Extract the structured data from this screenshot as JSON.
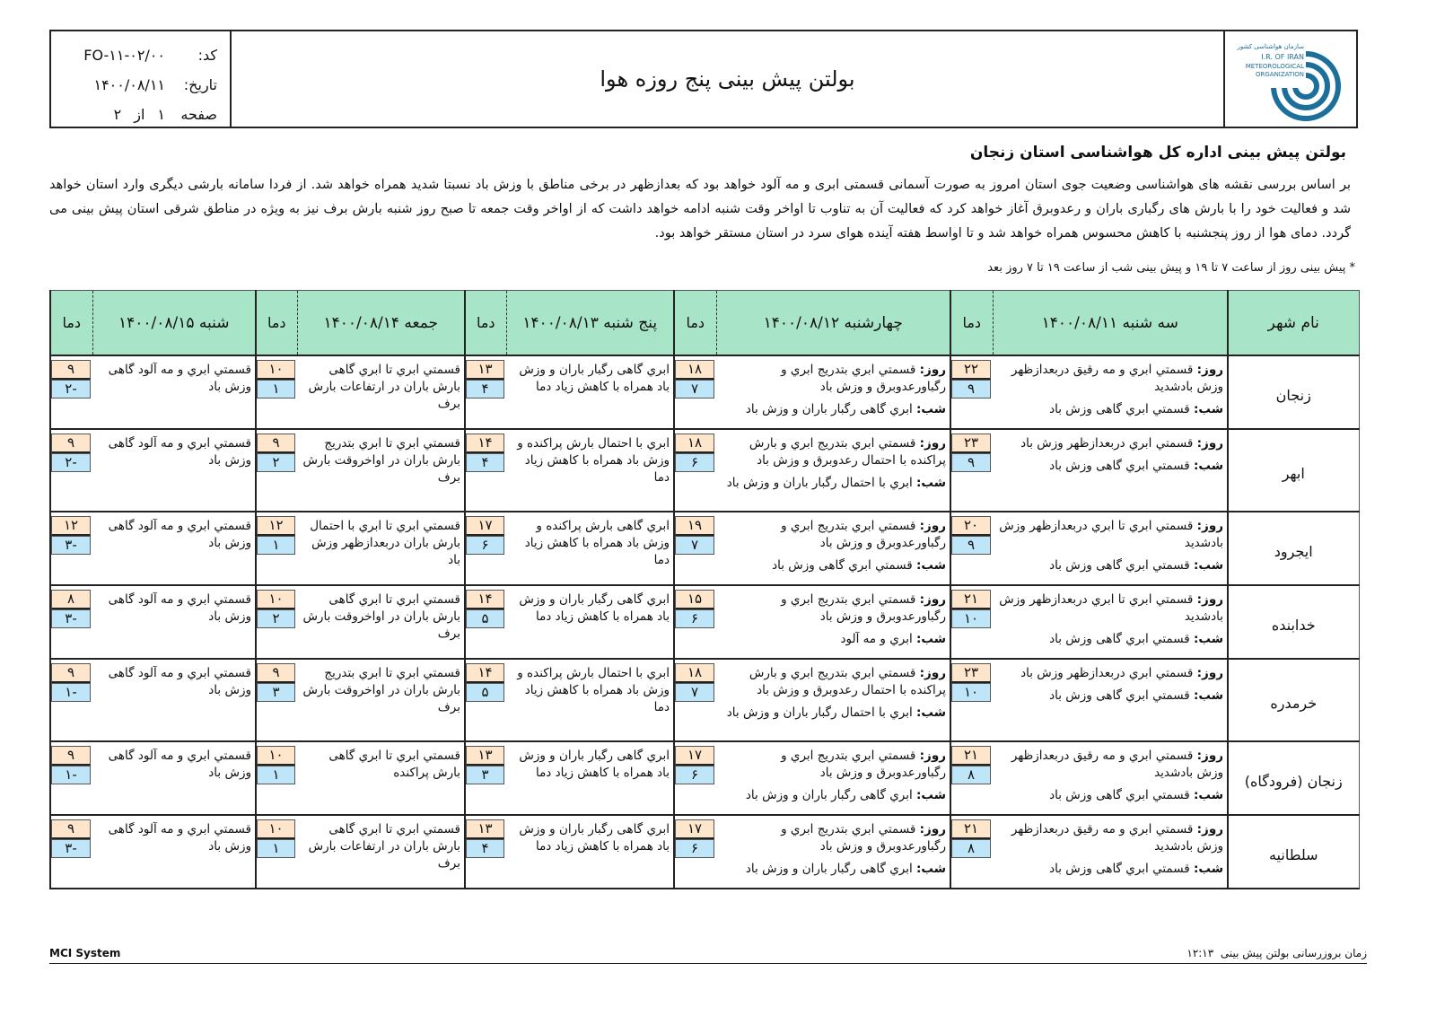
{
  "header": {
    "title": "بولتن پیش بینی پنج روزه هوا",
    "code_label": "کد:",
    "code": "FO-۱۱-۰۲/۰۰",
    "date_label": "تاریخ:",
    "date": "۱۴۰۰/۰۸/۱۱",
    "page_label": "صفحه",
    "page": "۱",
    "of_label": "از",
    "pages": "۲",
    "logo_text": "سازمان هواشناسی کشور I.R. OF IRAN METEOROLOGICAL ORGANIZATION"
  },
  "subtitle": "بولتن پیش بینی اداره کل هواشناسی استان زنجان",
  "paragraph": "بر اساس بررسی نقشه های هواشناسی وضعیت جوی استان امروز به صورت آسمانی قسمتی ابری و مه آلود خواهد بود که بعدازظهر در برخی مناطق با وزش باد نسبتا شدید همراه خواهد شد. از فردا سامانه بارشی دیگری وارد استان خواهد شد و فعالیت خود را با بارش های رگباری باران و رعدوبرق آغاز خواهد کرد که فعالیت آن به تناوب تا اواخر وقت شنبه ادامه خواهد داشت که از اواخر وقت جمعه تا صبح روز شنبه بارش برف نیز به ویژه در مناطق شرقی استان پیش بینی می گردد. دمای هوا از روز پنجشنبه با کاهش محسوس همراه خواهد شد و تا اواسط هفته آینده هوای سرد در استان مستقر خواهد بود.",
  "note": "*  پیش بینی روز از ساعت ۷ تا ۱۹ و پیش بینی شب از ساعت ۱۹ تا ۷ روز بعد",
  "table": {
    "city_header": "نام شهر",
    "temp_header": "دما",
    "day_label": "روز:",
    "night_label": "شب:",
    "days": [
      "سه شنبه ۱۴۰۰/۰۸/۱۱",
      "چهارشنبه ۱۴۰۰/۰۸/۱۲",
      "پنج شنبه ۱۴۰۰/۰۸/۱۳",
      "جمعه ۱۴۰۰/۰۸/۱۴",
      "شنبه ۱۴۰۰/۰۸/۱۵"
    ],
    "rows": [
      {
        "city": "زنجان",
        "f": [
          {
            "day": "قسمتي ابري و مه رقيق دربعدازظهر وزش بادشديد",
            "night": "قسمتي ابري گاهی وزش باد",
            "max": "۲۲",
            "min": "۹"
          },
          {
            "day": "قسمتي ابري بتدريج ابري و رگباورعدوبرق و وزش باد",
            "night": "ابري گاهی رگبار باران و وزش باد",
            "max": "۱۸",
            "min": "۷"
          },
          {
            "text": "ابري گاهی رگبار باران و وزش باد همراه با كاهش زياد دما",
            "max": "۱۳",
            "min": "۴"
          },
          {
            "text": "قسمتي ابري تا ابري گاهی بارش باران در ارتفاعات بارش برف",
            "max": "۱۰",
            "min": "۱"
          },
          {
            "text": "قسمتي ابري و مه آلود گاهی وزش باد",
            "max": "۹",
            "min": "-۲"
          }
        ]
      },
      {
        "city": "ابهر",
        "f": [
          {
            "day": "قسمتي ابري دربعدازظهر وزش باد",
            "night": "قسمتي ابري گاهی وزش باد",
            "max": "۲۳",
            "min": "۹"
          },
          {
            "day": "قسمتي ابري بتدريج ابري و بارش پراكنده با احتمال رعدوبرق و وزش باد",
            "night": "ابري با احتمال رگبار باران و وزش باد",
            "max": "۱۸",
            "min": "۶"
          },
          {
            "text": "ابري با احتمال بارش پراكنده و وزش باد همراه با كاهش زياد دما",
            "max": "۱۴",
            "min": "۴"
          },
          {
            "text": "قسمتي ابري تا ابري بتدريج بارش باران در اواخروقت بارش برف",
            "max": "۹",
            "min": "۲"
          },
          {
            "text": "قسمتي ابري و مه آلود گاهی وزش باد",
            "max": "۹",
            "min": "-۲"
          }
        ]
      },
      {
        "city": "ایجرود",
        "f": [
          {
            "day": "قسمتي ابري تا ابري دربعدازظهر وزش بادشديد",
            "night": "قسمتي ابري گاهی وزش باد",
            "max": "۲۰",
            "min": "۹"
          },
          {
            "day": "قسمتي ابري بتدريج ابري و رگباورعدوبرق و وزش باد",
            "night": "قسمتي ابري گاهی وزش باد",
            "max": "۱۹",
            "min": "۷"
          },
          {
            "text": "ابري گاهی بارش پراكنده و وزش باد همراه با كاهش زياد دما",
            "max": "۱۷",
            "min": "۶"
          },
          {
            "text": "قسمتي ابري تا ابري با احتمال بارش باران دربعدازظهر وزش باد",
            "max": "۱۲",
            "min": "۱"
          },
          {
            "text": "قسمتي ابري و مه آلود گاهی وزش باد",
            "max": "۱۲",
            "min": "-۳"
          }
        ]
      },
      {
        "city": "خدابنده",
        "f": [
          {
            "day": "قسمتي ابري تا ابري دربعدازظهر وزش بادشديد",
            "night": "قسمتي ابري گاهی وزش باد",
            "max": "۲۱",
            "min": "۱۰"
          },
          {
            "day": "قسمتي ابري بتدريج ابري و رگباورعدوبرق و وزش باد",
            "night": "ابري و مه آلود",
            "max": "۱۵",
            "min": "۶"
          },
          {
            "text": "ابري گاهی رگبار باران و وزش باد همراه با كاهش زياد دما",
            "max": "۱۴",
            "min": "۵"
          },
          {
            "text": "قسمتي ابري تا ابري گاهی بارش باران در اواخروقت بارش برف",
            "max": "۱۰",
            "min": "۲"
          },
          {
            "text": "قسمتي ابري و مه آلود گاهی وزش باد",
            "max": "۸",
            "min": "-۳"
          }
        ]
      },
      {
        "city": "خرمدره",
        "f": [
          {
            "day": "قسمتي ابري دربعدازظهر وزش باد",
            "night": "قسمتي ابري گاهی وزش باد",
            "max": "۲۳",
            "min": "۱۰"
          },
          {
            "day": "قسمتي ابري بتدريج ابري و بارش پراكنده با احتمال رعدوبرق و وزش باد",
            "night": "ابري با احتمال رگبار باران و وزش باد",
            "max": "۱۸",
            "min": "۷"
          },
          {
            "text": "ابري با احتمال بارش پراكنده و وزش باد همراه با كاهش زياد دما",
            "max": "۱۴",
            "min": "۵"
          },
          {
            "text": "قسمتي ابري تا ابري بتدريج بارش باران در اواخروقت بارش برف",
            "max": "۹",
            "min": "۳"
          },
          {
            "text": "قسمتي ابري و مه آلود گاهی وزش باد",
            "max": "۹",
            "min": "-۱"
          }
        ]
      },
      {
        "city": "زنجان (فرودگاه)",
        "f": [
          {
            "day": "قسمتي ابري و مه رقيق دربعدازظهر وزش بادشديد",
            "night": "قسمتي ابري گاهی وزش باد",
            "max": "۲۱",
            "min": "۸"
          },
          {
            "day": "قسمتي ابري بتدريج ابري و رگباورعدوبرق و وزش باد",
            "night": "ابري گاهی رگبار باران و وزش باد",
            "max": "۱۷",
            "min": "۶"
          },
          {
            "text": "ابري گاهی رگبار باران و وزش باد همراه با كاهش زياد دما",
            "max": "۱۳",
            "min": "۳"
          },
          {
            "text": "قسمتي ابري تا ابري گاهی بارش پراكنده",
            "max": "۱۰",
            "min": "۱"
          },
          {
            "text": "قسمتي ابري و مه آلود گاهی وزش باد",
            "max": "۹",
            "min": "-۱"
          }
        ]
      },
      {
        "city": "سلطانيه",
        "f": [
          {
            "day": "قسمتي ابري و مه رقيق دربعدازظهر وزش بادشديد",
            "night": "قسمتي ابري گاهی وزش باد",
            "max": "۲۱",
            "min": "۸"
          },
          {
            "day": "قسمتي ابري بتدريج ابري و رگباورعدوبرق و وزش باد",
            "night": "ابري گاهی رگبار باران و وزش باد",
            "max": "۱۷",
            "min": "۶"
          },
          {
            "text": "ابري گاهی رگبار باران و وزش باد همراه با كاهش زياد دما",
            "max": "۱۳",
            "min": "۴"
          },
          {
            "text": "قسمتي ابري تا ابري گاهی بارش باران در ارتفاعات بارش برف",
            "max": "۱۰",
            "min": "۱"
          },
          {
            "text": "قسمتي ابري و مه آلود گاهی وزش باد",
            "max": "۹",
            "min": "-۳"
          }
        ]
      }
    ]
  },
  "footer": {
    "system": "MCI System",
    "update_label": "زمان بروزرسانی بولتن پیش بینی",
    "update_time": "۱۲:۱۳"
  },
  "colors": {
    "header_green": "#a8e4c8",
    "max_temp": "#fde6cc",
    "min_temp": "#bfe6f8",
    "logo_blue": "#1b6f9a"
  }
}
